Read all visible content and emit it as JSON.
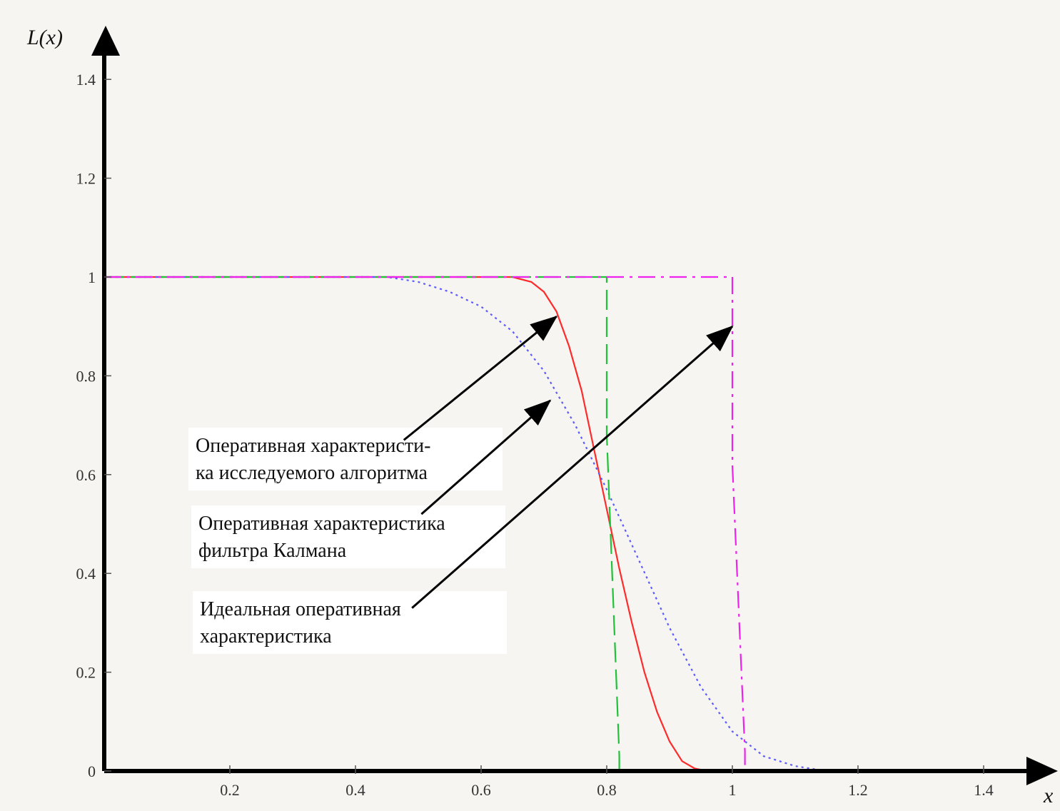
{
  "chart_data": {
    "type": "line",
    "title": "",
    "xlabel": "x",
    "ylabel": "L(x)",
    "xlim": [
      0,
      1.47
    ],
    "ylim": [
      0,
      1.4
    ],
    "x_ticks": [
      "0.2",
      "0.4",
      "0.6",
      "0.8",
      "1",
      "1.2",
      "1.4"
    ],
    "y_ticks": [
      "0",
      "0.2",
      "0.4",
      "0.6",
      "0.8",
      "1",
      "1.2",
      "1.4"
    ],
    "grid": false,
    "legend": "none",
    "series": [
      {
        "style": "solid",
        "color": "#ff2a2a",
        "x": [
          0,
          0.5,
          0.65,
          0.68,
          0.7,
          0.72,
          0.74,
          0.76,
          0.78,
          0.8,
          0.82,
          0.84,
          0.86,
          0.88,
          0.9,
          0.92,
          0.94,
          0.96,
          1.0,
          1.3,
          1.47
        ],
        "y": [
          1,
          1,
          1,
          0.99,
          0.97,
          0.93,
          0.86,
          0.77,
          0.65,
          0.53,
          0.41,
          0.3,
          0.2,
          0.12,
          0.06,
          0.02,
          0.005,
          0,
          0,
          0,
          0
        ]
      },
      {
        "style": "dotted",
        "color": "#5b5bff",
        "x": [
          0,
          0.45,
          0.5,
          0.55,
          0.6,
          0.65,
          0.7,
          0.75,
          0.8,
          0.85,
          0.9,
          0.95,
          1.0,
          1.05,
          1.1,
          1.15,
          1.3,
          1.47
        ],
        "y": [
          1,
          1,
          0.99,
          0.97,
          0.94,
          0.89,
          0.81,
          0.7,
          0.57,
          0.43,
          0.29,
          0.17,
          0.08,
          0.03,
          0.01,
          0,
          0,
          0
        ]
      },
      {
        "style": "dashed",
        "color": "#22c13a",
        "x": [
          0,
          0.8,
          0.8,
          0.82,
          0.82
        ],
        "y": [
          1,
          1,
          0.68,
          0.03,
          0
        ]
      },
      {
        "style": "dashdot",
        "color": "#ee22ee",
        "x": [
          0,
          1.0,
          1.0,
          1.02,
          1.02
        ],
        "y": [
          1,
          1,
          0.62,
          0.04,
          0
        ]
      }
    ],
    "annotations": [
      {
        "lines": [
          "Оперативная характеристи-",
          "ка исследуемого алгоритма"
        ],
        "arrow_from": [
          0.477,
          0.67
        ],
        "arrow_to": [
          0.72,
          0.92
        ]
      },
      {
        "lines": [
          "Оперативная характеристика",
          "фильтра Калмана"
        ],
        "arrow_from": [
          0.505,
          0.52
        ],
        "arrow_to": [
          0.71,
          0.75
        ]
      },
      {
        "lines": [
          "Идеальная оперативная",
          "характеристика"
        ],
        "arrow_from": [
          0.49,
          0.33
        ],
        "arrow_to": [
          1.0,
          0.9
        ]
      }
    ]
  }
}
